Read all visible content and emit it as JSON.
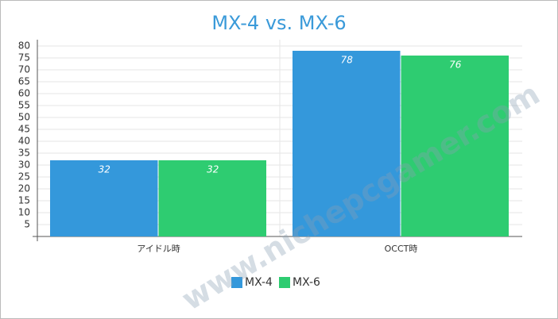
{
  "chart_data": {
    "type": "bar",
    "title": "MX-4 vs. MX-6",
    "categories": [
      "アイドル時",
      "OCCT時"
    ],
    "series": [
      {
        "name": "MX-4",
        "color": "#3498db",
        "values": [
          32,
          78
        ]
      },
      {
        "name": "MX-6",
        "color": "#2ecc71",
        "values": [
          32,
          76
        ]
      }
    ],
    "ylim": [
      0,
      80
    ],
    "yticks": [
      5,
      10,
      15,
      20,
      25,
      30,
      35,
      40,
      45,
      50,
      55,
      60,
      65,
      70,
      75,
      80
    ],
    "grid": true,
    "legend": "bottom",
    "watermark": "www.nichepcgamer.com"
  }
}
